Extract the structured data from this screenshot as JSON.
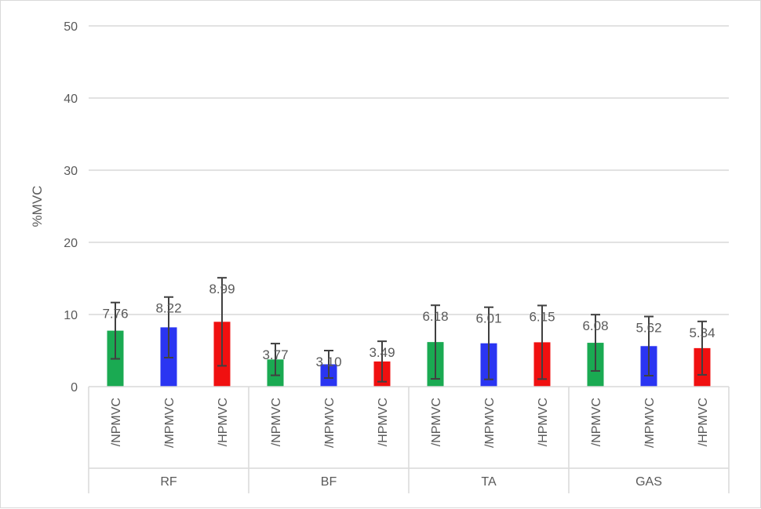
{
  "chart_data": {
    "type": "bar",
    "ylabel": "%MVC",
    "ylim": [
      0,
      50
    ],
    "yticks": [
      0,
      10,
      20,
      30,
      40,
      50
    ],
    "grid": true,
    "legend": "none",
    "colors": {
      "NPMVC": "#1aaa52",
      "MPMVC": "#2a35f2",
      "HPMVC": "#f01010",
      "grid": "#d9d9d9",
      "errorbar": "#404040"
    },
    "groups": [
      {
        "name": "RF",
        "bars": [
          {
            "label": "/NPMVC",
            "value": 7.76,
            "error": 3.9,
            "display": "7.76"
          },
          {
            "label": "/MPMVC",
            "value": 8.22,
            "error": 4.2,
            "display": "8.22"
          },
          {
            "label": "/HPMVC",
            "value": 8.99,
            "error": 6.1,
            "display": "8.99"
          }
        ]
      },
      {
        "name": "BF",
        "bars": [
          {
            "label": "/NPMVC",
            "value": 3.77,
            "error": 2.2,
            "display": "3.77"
          },
          {
            "label": "/MPMVC",
            "value": 3.1,
            "error": 1.9,
            "display": "3.10"
          },
          {
            "label": "/HPMVC",
            "value": 3.49,
            "error": 2.8,
            "display": "3.49"
          }
        ]
      },
      {
        "name": "TA",
        "bars": [
          {
            "label": "/NPMVC",
            "value": 6.18,
            "error": 5.1,
            "display": "6.18"
          },
          {
            "label": "/MPMVC",
            "value": 6.01,
            "error": 5.0,
            "display": "6.01"
          },
          {
            "label": "/HPMVC",
            "value": 6.15,
            "error": 5.1,
            "display": "6.15"
          }
        ]
      },
      {
        "name": "GAS",
        "bars": [
          {
            "label": "/NPMVC",
            "value": 6.08,
            "error": 3.9,
            "display": "6.08"
          },
          {
            "label": "/MPMVC",
            "value": 5.62,
            "error": 4.1,
            "display": "5.62"
          },
          {
            "label": "/HPMVC",
            "value": 5.34,
            "error": 3.7,
            "display": "5.34"
          }
        ]
      }
    ]
  }
}
